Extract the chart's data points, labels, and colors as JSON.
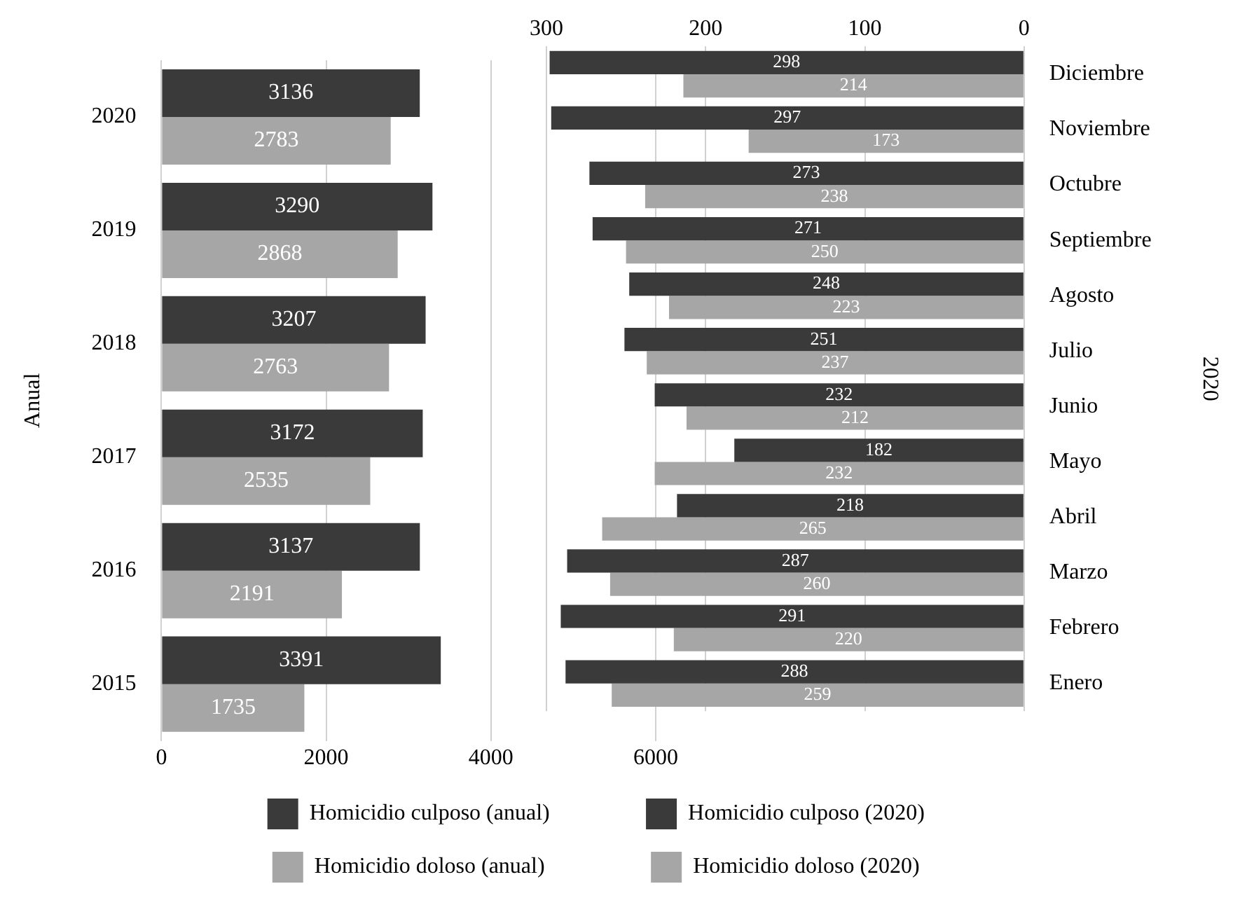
{
  "chart_data": [
    {
      "type": "bar",
      "orientation": "horizontal",
      "ylabel": "Anual",
      "categories": [
        "2020",
        "2019",
        "2018",
        "2017",
        "2016",
        "2015"
      ],
      "series": [
        {
          "name": "Homicidio culposo (anual)",
          "color": "#3a3a3a",
          "values": [
            3136,
            3290,
            3207,
            3172,
            3137,
            3391
          ]
        },
        {
          "name": "Homicidio doloso (anual)",
          "color": "#a6a6a6",
          "values": [
            2783,
            2868,
            2763,
            2535,
            2191,
            1735
          ]
        }
      ],
      "xlim": [
        0,
        6000
      ],
      "xticks": [
        0,
        2000,
        4000,
        6000
      ],
      "grid": "x",
      "legend": "bottom",
      "data_labels": true
    },
    {
      "type": "bar",
      "orientation": "horizontal",
      "y2label": "2020",
      "categories": [
        "Diciembre",
        "Noviembre",
        "Octubre",
        "Septiembre",
        "Agosto",
        "Julio",
        "Junio",
        "Mayo",
        "Abril",
        "Marzo",
        "Febrero",
        "Enero"
      ],
      "series": [
        {
          "name": "Homicidio culposo (2020)",
          "color": "#3a3a3a",
          "values": [
            298,
            297,
            273,
            271,
            248,
            251,
            232,
            182,
            218,
            287,
            291,
            288
          ]
        },
        {
          "name": "Homicidio doloso (2020)",
          "color": "#a6a6a6",
          "values": [
            214,
            173,
            238,
            250,
            223,
            237,
            212,
            232,
            265,
            260,
            220,
            259
          ]
        }
      ],
      "x2lim": [
        300,
        0
      ],
      "x2ticks": [
        300,
        200,
        100,
        0
      ],
      "grid": "x",
      "legend": "bottom",
      "data_labels": true
    }
  ]
}
